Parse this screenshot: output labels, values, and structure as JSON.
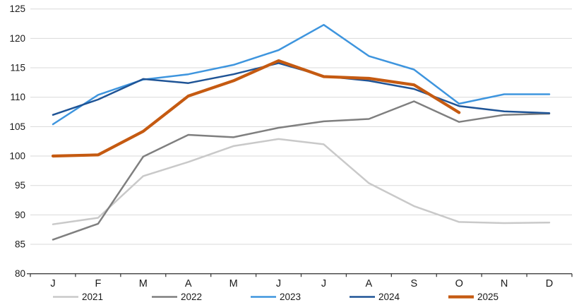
{
  "chart_data": {
    "type": "line",
    "title": "",
    "xlabel": "",
    "ylabel": "",
    "x_categories": [
      "J",
      "F",
      "M",
      "A",
      "M",
      "J",
      "J",
      "A",
      "S",
      "O",
      "N",
      "D"
    ],
    "y_ticks": [
      80,
      85,
      90,
      95,
      100,
      105,
      110,
      115,
      120,
      125
    ],
    "ylim": [
      80,
      125
    ],
    "grid": true,
    "legend_position": "bottom",
    "colors": {
      "grid_line": "#D9D9D9",
      "axis_line": "#404040",
      "label_text": "#1a1a1a"
    },
    "series": [
      {
        "name": "2021",
        "color": "#C9C9C9",
        "width": 2.5,
        "values": [
          88.4,
          89.5,
          96.6,
          99.0,
          101.7,
          102.9,
          102.0,
          95.4,
          91.5,
          88.8,
          88.6,
          88.7
        ]
      },
      {
        "name": "2022",
        "color": "#7F7F7F",
        "width": 2.5,
        "values": [
          85.8,
          88.5,
          99.9,
          103.6,
          103.2,
          104.8,
          105.9,
          106.3,
          109.3,
          105.8,
          107.0,
          107.2
        ]
      },
      {
        "name": "2023",
        "color": "#3E95DE",
        "width": 2.5,
        "values": [
          105.4,
          110.4,
          113.0,
          113.9,
          115.5,
          118.0,
          122.3,
          117.0,
          114.7,
          108.9,
          110.5,
          110.5
        ]
      },
      {
        "name": "2024",
        "color": "#1F5496",
        "width": 2.5,
        "values": [
          107.0,
          109.6,
          113.1,
          112.4,
          113.9,
          115.8,
          113.6,
          112.8,
          111.4,
          108.5,
          107.6,
          107.3
        ]
      },
      {
        "name": "2025",
        "color": "#C55A11",
        "width": 4.2,
        "values": [
          100.0,
          100.2,
          104.2,
          110.2,
          112.8,
          116.2,
          113.5,
          113.2,
          112.1,
          107.4,
          null,
          null
        ]
      }
    ]
  }
}
